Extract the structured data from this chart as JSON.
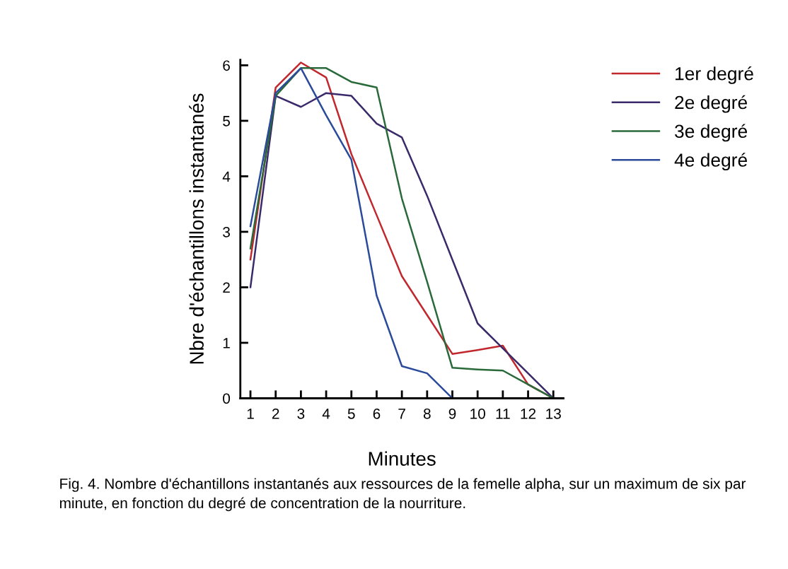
{
  "chart_data": {
    "type": "line",
    "xlabel": "Minutes",
    "ylabel": "Nbre d'échantillons instantanés",
    "x": [
      1,
      2,
      3,
      4,
      5,
      6,
      7,
      8,
      9,
      10,
      11,
      12,
      13
    ],
    "xlim": [
      0.6,
      13.4
    ],
    "xticks": [
      1,
      2,
      3,
      4,
      5,
      6,
      7,
      8,
      9,
      10,
      11,
      12,
      13
    ],
    "ylim": [
      0,
      6.1
    ],
    "yticks": [
      0,
      1,
      2,
      3,
      4,
      5,
      6
    ],
    "grid": false,
    "legend": "right",
    "marker": "none",
    "line_style": "solid",
    "series": [
      {
        "name": "1er degré",
        "color": "#c0282d",
        "values": [
          2.5,
          5.6,
          6.05,
          5.78,
          4.4,
          3.3,
          2.2,
          1.5,
          0.8,
          0.87,
          0.95,
          0.25,
          0.0
        ]
      },
      {
        "name": "2e degré",
        "color": "#3a2a6a",
        "values": [
          2.0,
          5.45,
          5.25,
          5.5,
          5.45,
          4.95,
          4.7,
          3.65,
          2.5,
          1.35,
          0.9,
          0.45,
          0.0
        ]
      },
      {
        "name": "3e degré",
        "color": "#2a6a3a",
        "values": [
          2.7,
          5.45,
          5.95,
          5.95,
          5.7,
          5.6,
          3.6,
          2.1,
          0.55,
          0.52,
          0.5,
          0.25,
          0.0
        ]
      },
      {
        "name": "4e degré",
        "color": "#2a4a9a",
        "values": [
          3.1,
          5.5,
          5.95,
          5.1,
          4.3,
          1.85,
          0.58,
          0.45,
          0.0,
          null,
          null,
          null,
          null
        ]
      }
    ],
    "annotations": [
      "Fig. 4. Nombre d'échantillons instantanés aux ressources de la femelle alpha, sur un maximum de six par minute, en fonction du degré de concentration de la nourriture."
    ]
  }
}
